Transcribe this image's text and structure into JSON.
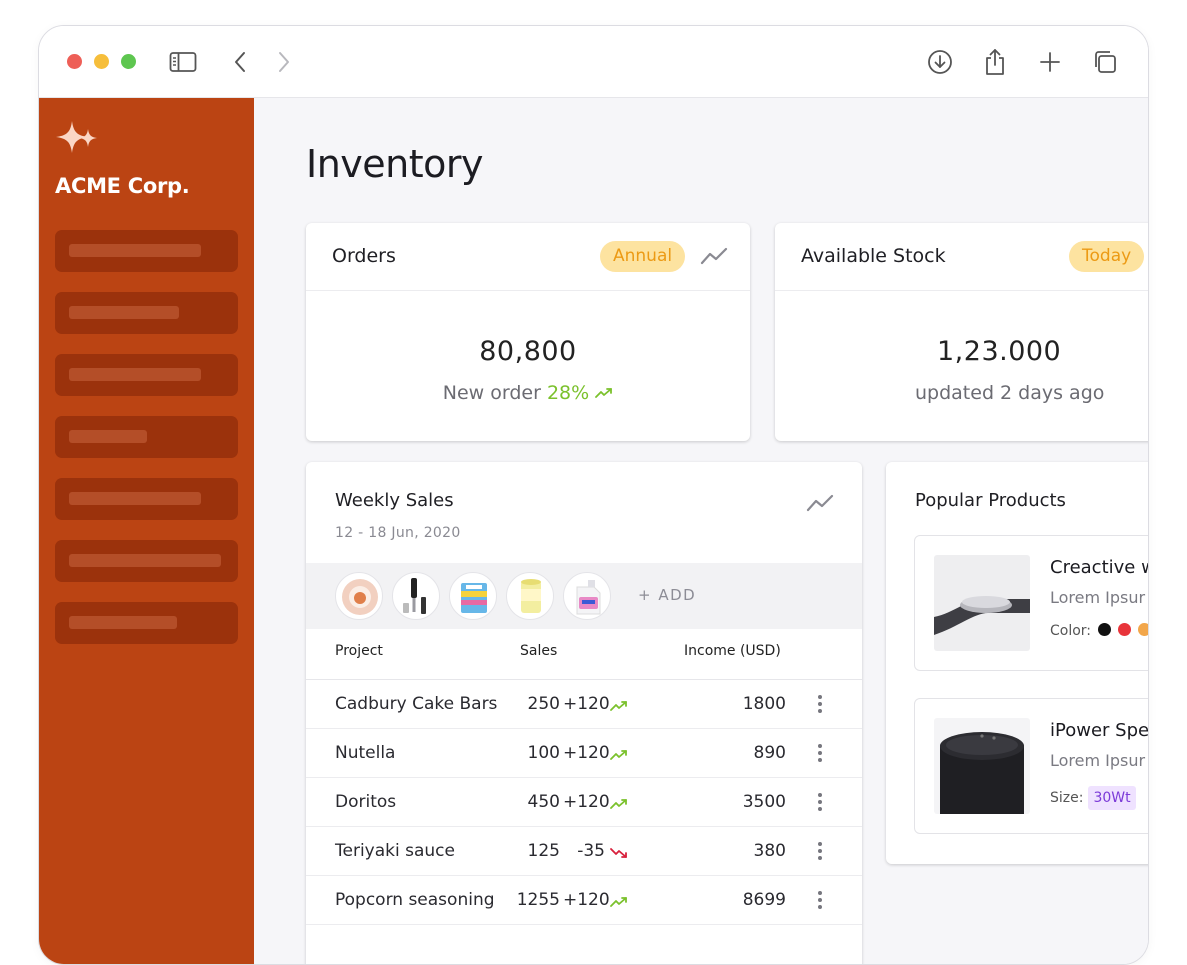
{
  "brand": {
    "name": "ACME Corp."
  },
  "page": {
    "title": "Inventory"
  },
  "orders": {
    "title": "Orders",
    "period": "Annual",
    "value": "80,800",
    "sub_label": "New order",
    "sub_change": "28%"
  },
  "stock": {
    "title": "Available Stock",
    "period": "Today",
    "value": "1,23.000",
    "sub_label": "updated 2 days ago"
  },
  "weekly_sales": {
    "title": "Weekly Sales",
    "date_range": "12 - 18 Jun, 2020",
    "add_label": "+ ADD",
    "columns": {
      "project": "Project",
      "sales": "Sales",
      "income": "Income (USD)"
    },
    "rows": [
      {
        "project": "Cadbury Cake Bars",
        "sales": "250",
        "change": "+120",
        "trend": "up",
        "income": "1800"
      },
      {
        "project": "Nutella",
        "sales": "100",
        "change": "+120",
        "trend": "up",
        "income": "890"
      },
      {
        "project": "Doritos",
        "sales": "450",
        "change": "+120",
        "trend": "up",
        "income": "3500"
      },
      {
        "project": "Teriyaki sauce",
        "sales": "125",
        "change": "-35",
        "trend": "down",
        "income": "380"
      },
      {
        "project": "Popcorn seasoning",
        "sales": "1255",
        "change": "+120",
        "trend": "up",
        "income": "8699"
      }
    ]
  },
  "popular": {
    "title": "Popular Products",
    "items": [
      {
        "name": "Creactive w",
        "desc": "Lorem Ipsur",
        "meta_label": "Color:"
      },
      {
        "name": "iPower Spe",
        "desc": "Lorem Ipsur",
        "meta_label": "Size:",
        "size": "30Wt"
      }
    ]
  },
  "colors": {
    "sidebar": "#bb4413",
    "accent_green": "#7bc12c",
    "accent_red": "#d8203c",
    "pill_bg": "#fde3a0",
    "pill_text": "#ec9a14"
  },
  "icons": [
    "sidebar-toggle-icon",
    "back-icon",
    "forward-icon",
    "download-icon",
    "share-icon",
    "plus-icon",
    "tabs-icon",
    "sparkle-icon",
    "trend-icon"
  ]
}
